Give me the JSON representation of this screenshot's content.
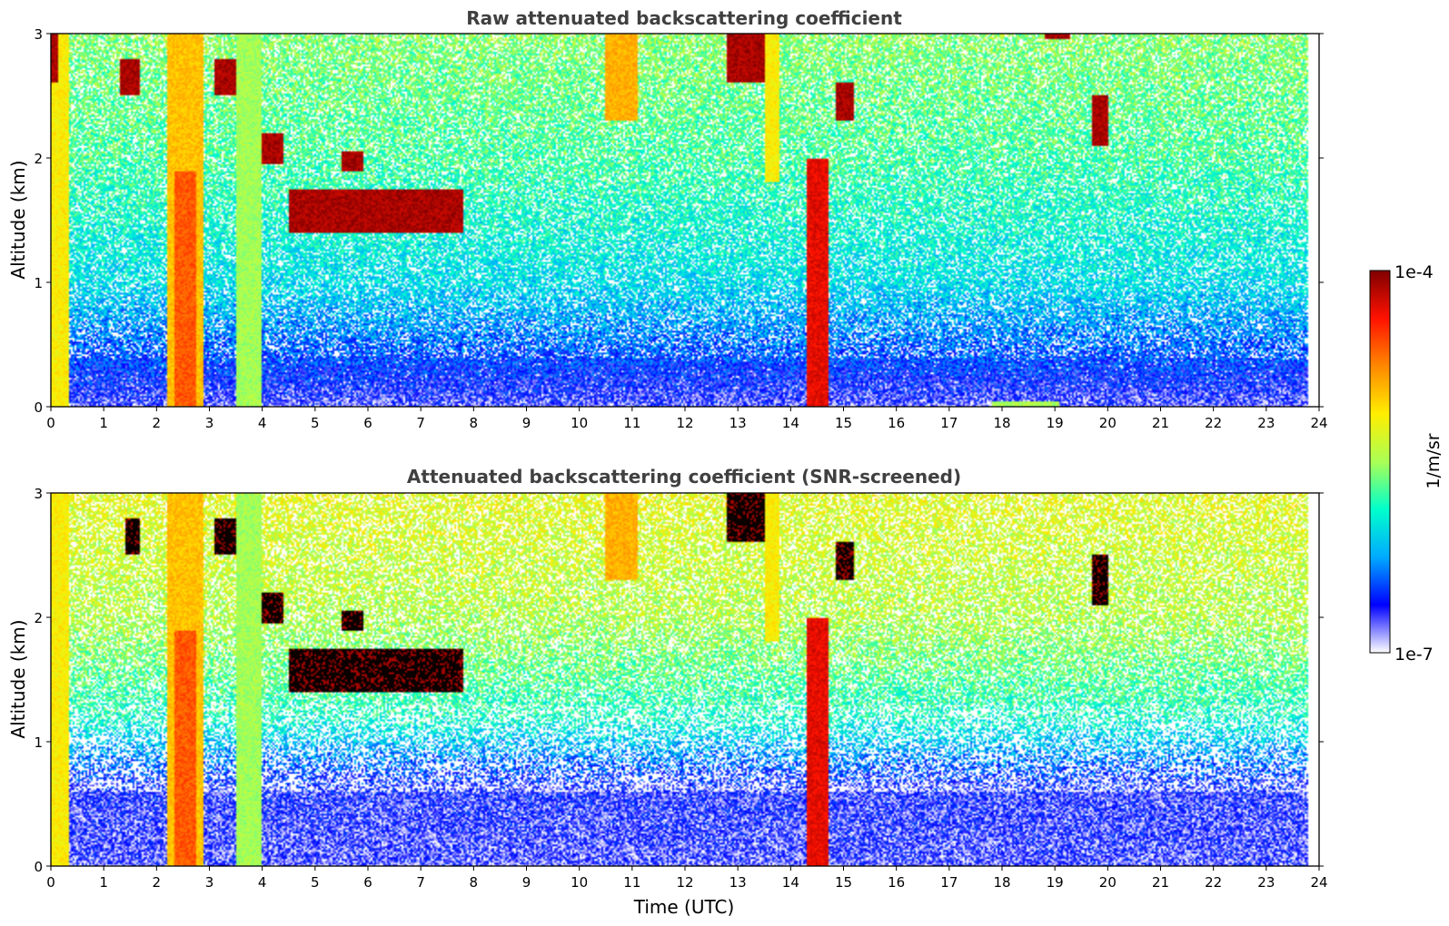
{
  "chart_data": [
    {
      "type": "heatmap",
      "title": "Raw attenuated backscattering coefficient",
      "xlabel": "",
      "ylabel": "Altitude (km)",
      "xlim": [
        0,
        24
      ],
      "ylim": [
        0,
        3
      ],
      "xticks": [
        "0",
        "1",
        "2",
        "3",
        "4",
        "5",
        "6",
        "7",
        "8",
        "9",
        "10",
        "11",
        "12",
        "13",
        "14",
        "15",
        "16",
        "17",
        "18",
        "19",
        "20",
        "21",
        "22",
        "23",
        "24"
      ],
      "yticks": [
        "0",
        "1",
        "2",
        "3"
      ],
      "background_levels": [
        {
          "alt": 0.0,
          "level": 0.08
        },
        {
          "alt": 0.4,
          "level": 0.18
        },
        {
          "alt": 1.0,
          "level": 0.32
        },
        {
          "alt": 2.0,
          "level": 0.42
        },
        {
          "alt": 3.0,
          "level": 0.48
        }
      ],
      "features": [
        {
          "t0": 0.0,
          "t1": 0.35,
          "z0": 0.0,
          "z1": 3.0,
          "level": 0.62
        },
        {
          "t0": 0.0,
          "t1": 0.15,
          "z0": 2.6,
          "z1": 3.0,
          "level": 0.96
        },
        {
          "t0": 2.2,
          "t1": 2.9,
          "z0": 0.0,
          "z1": 3.0,
          "level": 0.68
        },
        {
          "t0": 2.35,
          "t1": 2.75,
          "z0": 0.0,
          "z1": 1.9,
          "level": 0.8
        },
        {
          "t0": 3.5,
          "t1": 4.0,
          "z0": 0.0,
          "z1": 3.0,
          "level": 0.5
        },
        {
          "t0": 4.5,
          "t1": 7.8,
          "z0": 1.4,
          "z1": 1.75,
          "level": 0.96
        },
        {
          "t0": 5.5,
          "t1": 5.9,
          "z0": 1.9,
          "z1": 2.05,
          "level": 0.96
        },
        {
          "t0": 4.0,
          "t1": 4.4,
          "z0": 1.95,
          "z1": 2.2,
          "level": 0.96
        },
        {
          "t0": 1.3,
          "t1": 1.7,
          "z0": 2.5,
          "z1": 2.8,
          "level": 0.96
        },
        {
          "t0": 3.1,
          "t1": 3.5,
          "z0": 2.5,
          "z1": 2.8,
          "level": 0.96
        },
        {
          "t0": 10.5,
          "t1": 11.1,
          "z0": 2.3,
          "z1": 3.0,
          "level": 0.7
        },
        {
          "t0": 12.8,
          "t1": 13.5,
          "z0": 2.6,
          "z1": 3.0,
          "level": 0.96
        },
        {
          "t0": 13.5,
          "t1": 13.8,
          "z0": 1.8,
          "z1": 3.0,
          "level": 0.62
        },
        {
          "t0": 14.3,
          "t1": 14.7,
          "z0": 0.0,
          "z1": 2.0,
          "level": 0.9
        },
        {
          "t0": 14.85,
          "t1": 15.2,
          "z0": 2.3,
          "z1": 2.6,
          "level": 0.96
        },
        {
          "t0": 19.7,
          "t1": 20.0,
          "z0": 2.1,
          "z1": 2.5,
          "level": 0.96
        },
        {
          "t0": 18.8,
          "t1": 19.3,
          "z0": 2.95,
          "z1": 3.0,
          "level": 0.96
        },
        {
          "t0": 17.8,
          "t1": 19.1,
          "z0": 0.0,
          "z1": 0.05,
          "level": 0.5
        }
      ]
    },
    {
      "type": "heatmap",
      "title": "Attenuated backscattering coefficient (SNR-screened)",
      "xlabel": "Time (UTC)",
      "ylabel": "Altitude (km)",
      "xlim": [
        0,
        24
      ],
      "ylim": [
        0,
        3
      ],
      "xticks": [
        "0",
        "1",
        "2",
        "3",
        "4",
        "5",
        "6",
        "7",
        "8",
        "9",
        "10",
        "11",
        "12",
        "13",
        "14",
        "15",
        "16",
        "17",
        "18",
        "19",
        "20",
        "21",
        "22",
        "23",
        "24"
      ],
      "yticks": [
        "0",
        "1",
        "2",
        "3"
      ],
      "background_levels": [
        {
          "alt": 0.0,
          "level": 0.08
        },
        {
          "alt": 0.6,
          "level": 0.1
        },
        {
          "alt": 1.2,
          "level": 0.38
        },
        {
          "alt": 2.0,
          "level": 0.52
        },
        {
          "alt": 3.0,
          "level": 0.58
        }
      ],
      "features": [
        {
          "t0": 0.0,
          "t1": 0.35,
          "z0": 0.0,
          "z1": 3.0,
          "level": 0.62
        },
        {
          "t0": 2.2,
          "t1": 2.9,
          "z0": 0.0,
          "z1": 3.0,
          "level": 0.68
        },
        {
          "t0": 2.35,
          "t1": 2.75,
          "z0": 0.0,
          "z1": 1.9,
          "level": 0.8
        },
        {
          "t0": 3.5,
          "t1": 4.0,
          "z0": 0.0,
          "z1": 3.0,
          "level": 0.5
        },
        {
          "t0": 4.5,
          "t1": 7.8,
          "z0": 1.4,
          "z1": 1.75,
          "level": 0.99
        },
        {
          "t0": 5.5,
          "t1": 5.9,
          "z0": 1.9,
          "z1": 2.05,
          "level": 0.99
        },
        {
          "t0": 4.0,
          "t1": 4.4,
          "z0": 1.95,
          "z1": 2.2,
          "level": 0.99
        },
        {
          "t0": 1.4,
          "t1": 1.7,
          "z0": 2.5,
          "z1": 2.8,
          "level": 0.99
        },
        {
          "t0": 3.1,
          "t1": 3.5,
          "z0": 2.5,
          "z1": 2.8,
          "level": 0.99
        },
        {
          "t0": 12.8,
          "t1": 13.5,
          "z0": 2.6,
          "z1": 3.0,
          "level": 0.99
        },
        {
          "t0": 13.5,
          "t1": 13.8,
          "z0": 1.8,
          "z1": 3.0,
          "level": 0.62
        },
        {
          "t0": 14.3,
          "t1": 14.7,
          "z0": 0.0,
          "z1": 2.0,
          "level": 0.9
        },
        {
          "t0": 14.85,
          "t1": 15.2,
          "z0": 2.3,
          "z1": 2.6,
          "level": 0.99
        },
        {
          "t0": 19.7,
          "t1": 20.0,
          "z0": 2.1,
          "z1": 2.5,
          "level": 0.99
        },
        {
          "t0": 10.5,
          "t1": 11.1,
          "z0": 2.3,
          "z1": 3.0,
          "level": 0.7
        }
      ]
    }
  ],
  "colorbar": {
    "label": "1/m/sr",
    "max_label": "1e-4",
    "min_label": "1e-7",
    "colormap": "jet",
    "colors": [
      "#ffffff",
      "#0000ff",
      "#00aaff",
      "#00ffcc",
      "#aaff55",
      "#ffee00",
      "#ff8800",
      "#ff1100",
      "#800000"
    ]
  }
}
